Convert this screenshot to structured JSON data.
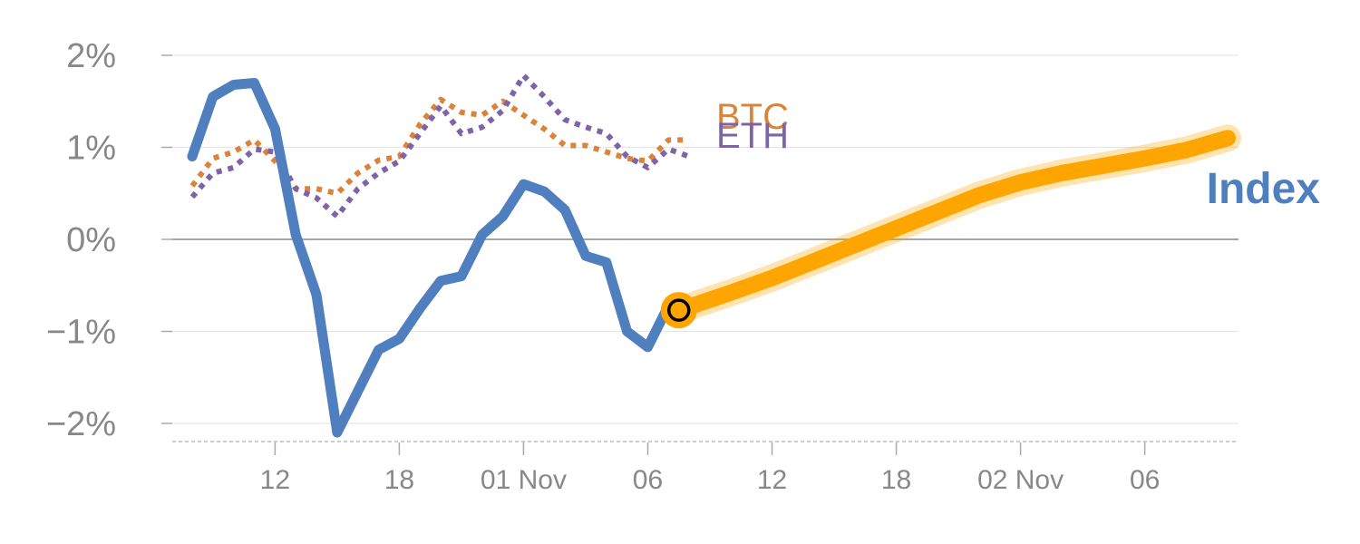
{
  "chart_data": {
    "type": "line",
    "y_ticks": [
      {
        "value": 2,
        "label": "2%"
      },
      {
        "value": 1,
        "label": "1%"
      },
      {
        "value": 0,
        "label": "0%"
      },
      {
        "value": -1,
        "label": "−1%"
      },
      {
        "value": -2,
        "label": "−2%"
      }
    ],
    "ylim": [
      -2.2,
      2.1
    ],
    "xlim": [
      0,
      102
    ],
    "x_ticks": [
      {
        "x": 8,
        "label": "12"
      },
      {
        "x": 20,
        "label": "18"
      },
      {
        "x": 32,
        "label": "01 Nov"
      },
      {
        "x": 44,
        "label": "06"
      },
      {
        "x": 56,
        "label": "12"
      },
      {
        "x": 68,
        "label": "18"
      },
      {
        "x": 80,
        "label": "02 Nov"
      },
      {
        "x": 92,
        "label": "06"
      }
    ],
    "grid": true,
    "series": [
      {
        "name": "Index",
        "color": "#4f7fbf",
        "style": "solid",
        "x": [
          0,
          2,
          4,
          6,
          8,
          10,
          12,
          14,
          16,
          18,
          20,
          22,
          24,
          26,
          28,
          30,
          32,
          34,
          36,
          38,
          40,
          42,
          44,
          46
        ],
        "y": [
          0.9,
          1.55,
          1.68,
          1.7,
          1.2,
          0.05,
          -0.6,
          -2.1,
          -1.65,
          -1.2,
          -1.08,
          -0.75,
          -0.45,
          -0.4,
          0.05,
          0.25,
          0.6,
          0.52,
          0.32,
          -0.18,
          -0.25,
          -1.0,
          -1.17,
          -0.72
        ]
      },
      {
        "name": "BTC",
        "color": "#d9843a",
        "style": "dotted",
        "x": [
          0,
          2,
          4,
          6,
          8,
          10,
          12,
          14,
          16,
          18,
          20,
          22,
          24,
          26,
          28,
          30,
          32,
          34,
          36,
          38,
          40,
          42,
          44,
          46,
          48
        ],
        "y": [
          0.58,
          0.88,
          0.95,
          1.08,
          0.85,
          0.55,
          0.55,
          0.5,
          0.72,
          0.86,
          0.9,
          1.25,
          1.52,
          1.38,
          1.35,
          1.5,
          1.35,
          1.2,
          1.02,
          1.02,
          0.95,
          0.88,
          0.85,
          1.08,
          1.08
        ]
      },
      {
        "name": "ETH",
        "color": "#7e64a6",
        "style": "dotted",
        "x": [
          0,
          2,
          4,
          6,
          8,
          10,
          12,
          14,
          16,
          18,
          20,
          22,
          24,
          26,
          28,
          30,
          32,
          34,
          36,
          38,
          40,
          42,
          44,
          46,
          48
        ],
        "y": [
          0.46,
          0.72,
          0.78,
          0.98,
          0.95,
          0.55,
          0.45,
          0.25,
          0.55,
          0.72,
          0.85,
          1.15,
          1.45,
          1.15,
          1.22,
          1.4,
          1.78,
          1.55,
          1.3,
          1.22,
          1.15,
          0.9,
          0.78,
          0.98,
          0.9
        ]
      }
    ],
    "forecast": {
      "color": "#ffa500",
      "x": [
        47,
        52,
        56,
        60,
        64,
        68,
        72,
        76,
        80,
        84,
        88,
        92,
        96,
        100
      ],
      "y": [
        -0.77,
        -0.58,
        -0.42,
        -0.24,
        -0.06,
        0.12,
        0.3,
        0.48,
        0.62,
        0.72,
        0.8,
        0.88,
        0.97,
        1.1
      ]
    },
    "marker": {
      "x": 47,
      "y": -0.77,
      "color": "#ffa500"
    }
  }
}
